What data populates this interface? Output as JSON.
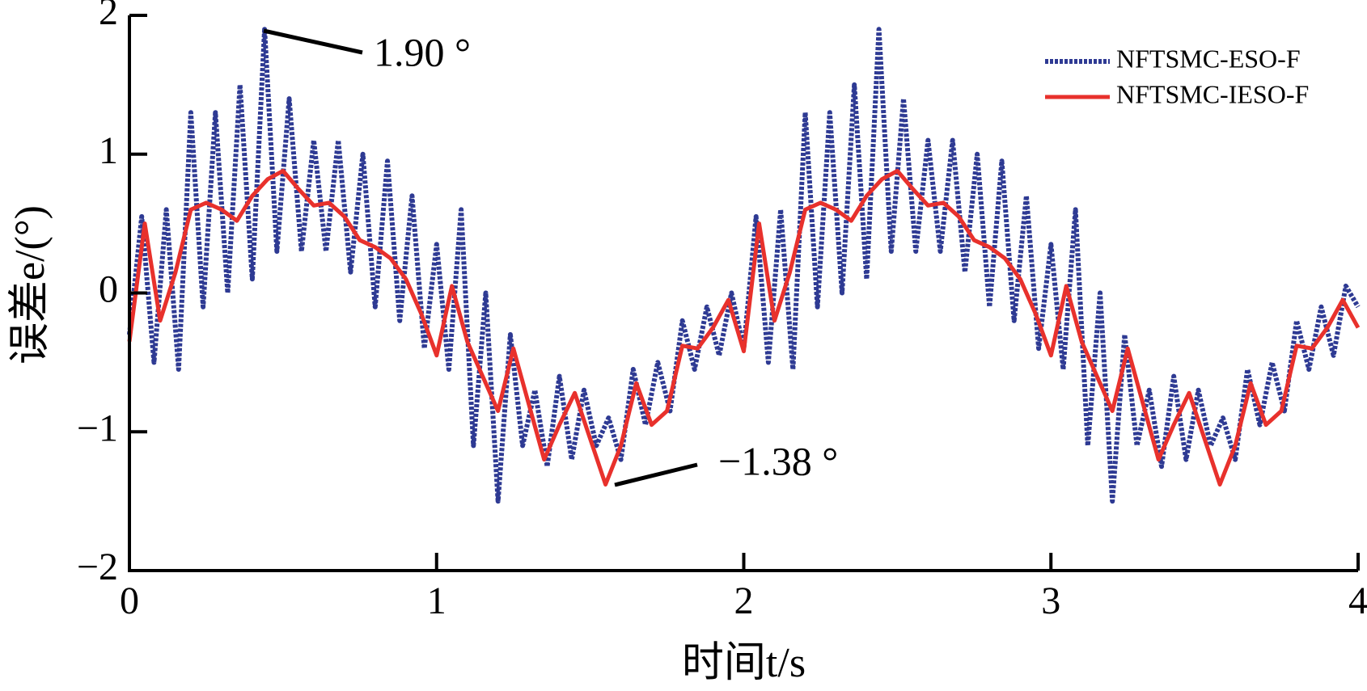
{
  "chart_data": {
    "type": "line",
    "xlabel": "时间t/s",
    "ylabel": "误差e/(°)",
    "xlim": [
      0,
      4
    ],
    "ylim": [
      -2,
      2
    ],
    "xticks": [
      0,
      1,
      2,
      3,
      4
    ],
    "yticks": [
      {
        "value": -2,
        "label": "−2"
      },
      {
        "value": -1,
        "label": "−1"
      },
      0,
      1,
      2
    ],
    "legend": "upper right",
    "annotations": [
      "1.90 °",
      "−1.38 °"
    ],
    "series": [
      {
        "name": "NFTSMC-ESO-F",
        "color": "#2e3a93",
        "dashed": true,
        "x": [
          0,
          0.04,
          0.08,
          0.12,
          0.16,
          0.2,
          0.24,
          0.28,
          0.32,
          0.36,
          0.4,
          0.44,
          0.48,
          0.52,
          0.56,
          0.6,
          0.64,
          0.68,
          0.72,
          0.76,
          0.8,
          0.84,
          0.88,
          0.92,
          0.96,
          1.0,
          1.04,
          1.08,
          1.12,
          1.16,
          1.2,
          1.24,
          1.28,
          1.32,
          1.36,
          1.4,
          1.44,
          1.48,
          1.52,
          1.56,
          1.6,
          1.64,
          1.68,
          1.72,
          1.76,
          1.8,
          1.84,
          1.88,
          1.92,
          1.96,
          2.0,
          2.04,
          2.08,
          2.12,
          2.16,
          2.2,
          2.24,
          2.28,
          2.32,
          2.36,
          2.4,
          2.44,
          2.48,
          2.52,
          2.56,
          2.6,
          2.64,
          2.68,
          2.72,
          2.76,
          2.8,
          2.84,
          2.88,
          2.92,
          2.96,
          3.0,
          3.04,
          3.08,
          3.12,
          3.16,
          3.2,
          3.24,
          3.28,
          3.32,
          3.36,
          3.4,
          3.44,
          3.48,
          3.52,
          3.56,
          3.6,
          3.64,
          3.68,
          3.72,
          3.76,
          3.8,
          3.84,
          3.88,
          3.92,
          3.96,
          4.0
        ],
        "values": [
          -0.3,
          0.55,
          -0.5,
          0.6,
          -0.55,
          1.3,
          -0.1,
          1.3,
          0.0,
          1.5,
          0.1,
          1.9,
          0.3,
          1.4,
          0.3,
          1.1,
          0.3,
          1.1,
          0.15,
          1.0,
          -0.1,
          0.95,
          -0.2,
          0.7,
          -0.4,
          0.35,
          -0.55,
          0.6,
          -1.1,
          0.0,
          -1.5,
          -0.3,
          -1.1,
          -0.7,
          -1.25,
          -0.6,
          -1.2,
          -0.7,
          -1.1,
          -0.9,
          -1.2,
          -0.55,
          -0.95,
          -0.5,
          -0.85,
          -0.2,
          -0.55,
          -0.1,
          -0.45,
          0.0,
          -0.4,
          0.55,
          -0.5,
          0.6,
          -0.55,
          1.3,
          -0.1,
          1.3,
          0.0,
          1.5,
          0.1,
          1.9,
          0.3,
          1.4,
          0.3,
          1.1,
          0.3,
          1.1,
          0.15,
          1.0,
          -0.1,
          0.95,
          -0.2,
          0.7,
          -0.4,
          0.35,
          -0.55,
          0.6,
          -1.1,
          0.0,
          -1.5,
          -0.3,
          -1.1,
          -0.7,
          -1.25,
          -0.6,
          -1.2,
          -0.7,
          -1.1,
          -0.9,
          -1.2,
          -0.55,
          -0.95,
          -0.5,
          -0.85,
          -0.2,
          -0.55,
          -0.1,
          -0.45,
          0.05,
          -0.1
        ]
      },
      {
        "name": "NFTSMC-IESO-F",
        "color": "#e8312c",
        "dashed": false,
        "x": [
          0,
          0.05,
          0.1,
          0.15,
          0.2,
          0.25,
          0.3,
          0.35,
          0.4,
          0.45,
          0.5,
          0.55,
          0.6,
          0.65,
          0.7,
          0.75,
          0.8,
          0.85,
          0.9,
          0.95,
          1.0,
          1.05,
          1.1,
          1.15,
          1.2,
          1.25,
          1.3,
          1.35,
          1.4,
          1.45,
          1.5,
          1.55,
          1.6,
          1.65,
          1.7,
          1.75,
          1.8,
          1.85,
          1.9,
          1.95,
          2.0,
          2.05,
          2.1,
          2.15,
          2.2,
          2.25,
          2.3,
          2.35,
          2.4,
          2.45,
          2.5,
          2.55,
          2.6,
          2.65,
          2.7,
          2.75,
          2.8,
          2.85,
          2.9,
          2.95,
          3.0,
          3.05,
          3.1,
          3.15,
          3.2,
          3.25,
          3.3,
          3.35,
          3.4,
          3.45,
          3.5,
          3.55,
          3.6,
          3.65,
          3.7,
          3.75,
          3.8,
          3.85,
          3.9,
          3.95,
          4.0
        ],
        "values": [
          -0.35,
          0.5,
          -0.2,
          0.15,
          0.6,
          0.65,
          0.6,
          0.52,
          0.7,
          0.82,
          0.88,
          0.75,
          0.63,
          0.65,
          0.55,
          0.38,
          0.33,
          0.25,
          0.1,
          -0.15,
          -0.45,
          0.05,
          -0.35,
          -0.6,
          -0.85,
          -0.4,
          -0.8,
          -1.2,
          -0.95,
          -0.72,
          -1.05,
          -1.38,
          -1.1,
          -0.65,
          -0.95,
          -0.85,
          -0.38,
          -0.4,
          -0.25,
          -0.05,
          -0.42,
          0.5,
          -0.2,
          0.15,
          0.6,
          0.65,
          0.6,
          0.52,
          0.7,
          0.82,
          0.88,
          0.75,
          0.63,
          0.65,
          0.55,
          0.38,
          0.33,
          0.25,
          0.1,
          -0.15,
          -0.45,
          0.05,
          -0.35,
          -0.6,
          -0.85,
          -0.4,
          -0.8,
          -1.2,
          -0.95,
          -0.72,
          -1.05,
          -1.38,
          -1.1,
          -0.65,
          -0.95,
          -0.85,
          -0.38,
          -0.4,
          -0.25,
          -0.05,
          -0.25
        ]
      }
    ]
  }
}
